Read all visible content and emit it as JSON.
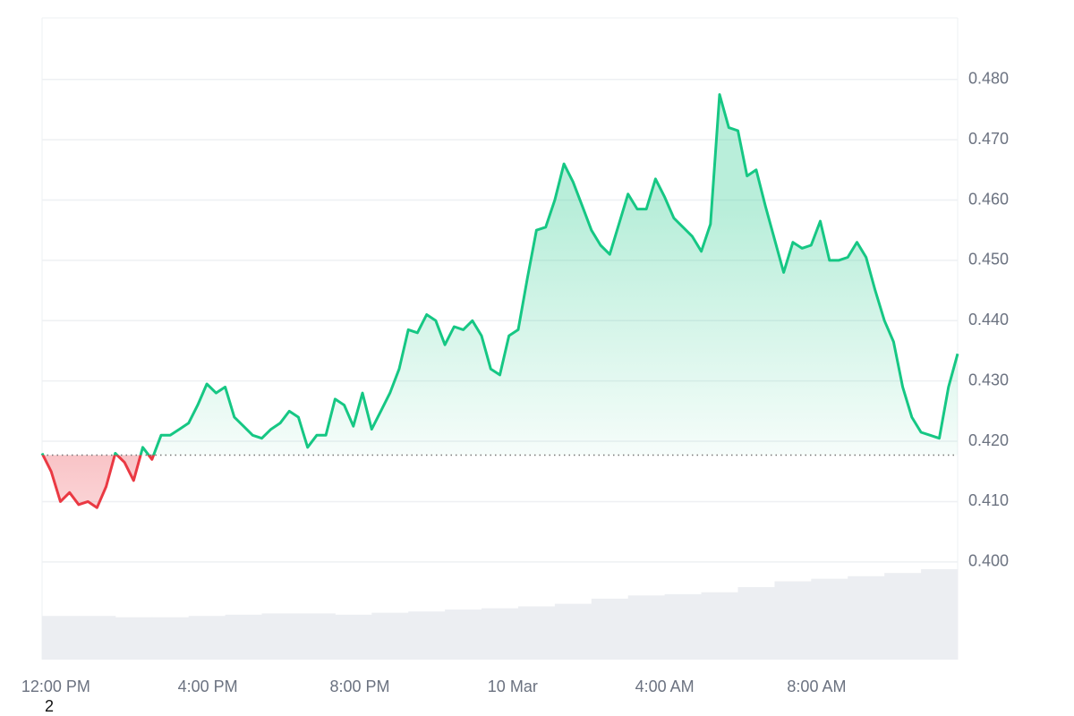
{
  "chart_data": {
    "type": "line",
    "values": [
      0.418,
      0.415,
      0.41,
      0.4115,
      0.4095,
      0.41,
      0.409,
      0.4125,
      0.418,
      0.4165,
      0.4135,
      0.419,
      0.417,
      0.421,
      0.421,
      0.422,
      0.423,
      0.426,
      0.4295,
      0.428,
      0.429,
      0.424,
      0.4225,
      0.421,
      0.4205,
      0.422,
      0.423,
      0.425,
      0.424,
      0.419,
      0.421,
      0.421,
      0.427,
      0.426,
      0.4225,
      0.428,
      0.422,
      0.425,
      0.428,
      0.432,
      0.4385,
      0.438,
      0.441,
      0.44,
      0.436,
      0.439,
      0.4385,
      0.44,
      0.4375,
      0.432,
      0.431,
      0.4375,
      0.4385,
      0.447,
      0.455,
      0.4555,
      0.46,
      0.466,
      0.463,
      0.459,
      0.455,
      0.4525,
      0.451,
      0.456,
      0.461,
      0.4585,
      0.4585,
      0.4635,
      0.4605,
      0.457,
      0.4555,
      0.454,
      0.4515,
      0.456,
      0.4775,
      0.472,
      0.4715,
      0.464,
      0.465,
      0.459,
      0.4535,
      0.448,
      0.453,
      0.452,
      0.4525,
      0.4565,
      0.45,
      0.45,
      0.4505,
      0.453,
      0.4505,
      0.445,
      0.44,
      0.4365,
      0.429,
      0.424,
      0.4215,
      0.421,
      0.4205,
      0.429,
      0.4345
    ],
    "baseline": 0.4177,
    "up_color": "#16c784",
    "down_color": "#ea3943",
    "xlim": [
      0,
      100
    ],
    "xticks": [
      {
        "value": 1.5,
        "label": "12:00 PM"
      },
      {
        "value": 18.1,
        "label": "4:00 PM"
      },
      {
        "value": 34.7,
        "label": "8:00 PM"
      },
      {
        "value": 51.4,
        "label": "10 Mar"
      },
      {
        "value": 68.0,
        "label": "4:00 AM"
      },
      {
        "value": 84.6,
        "label": "8:00 AM"
      }
    ],
    "ylim": [
      0.3838,
      0.4902
    ],
    "yticks": [
      {
        "value": 0.4,
        "label": "0.400"
      },
      {
        "value": 0.41,
        "label": "0.410"
      },
      {
        "value": 0.42,
        "label": "0.420"
      },
      {
        "value": 0.43,
        "label": "0.430"
      },
      {
        "value": 0.44,
        "label": "0.440"
      },
      {
        "value": 0.45,
        "label": "0.450"
      },
      {
        "value": 0.46,
        "label": "0.460"
      },
      {
        "value": 0.47,
        "label": "0.470"
      },
      {
        "value": 0.48,
        "label": "0.480"
      }
    ],
    "grid": true,
    "volume": {
      "color": "#eceef2",
      "y2lim": [
        0,
        100
      ],
      "values": [
        6.8,
        6.8,
        6.6,
        6.6,
        6.8,
        7.0,
        7.2,
        7.2,
        7.0,
        7.3,
        7.5,
        7.8,
        8.0,
        8.3,
        8.7,
        9.5,
        10.0,
        10.2,
        10.5,
        11.3,
        12.2,
        12.6,
        13.0,
        13.5,
        14.1
      ]
    },
    "annotation": "2"
  }
}
